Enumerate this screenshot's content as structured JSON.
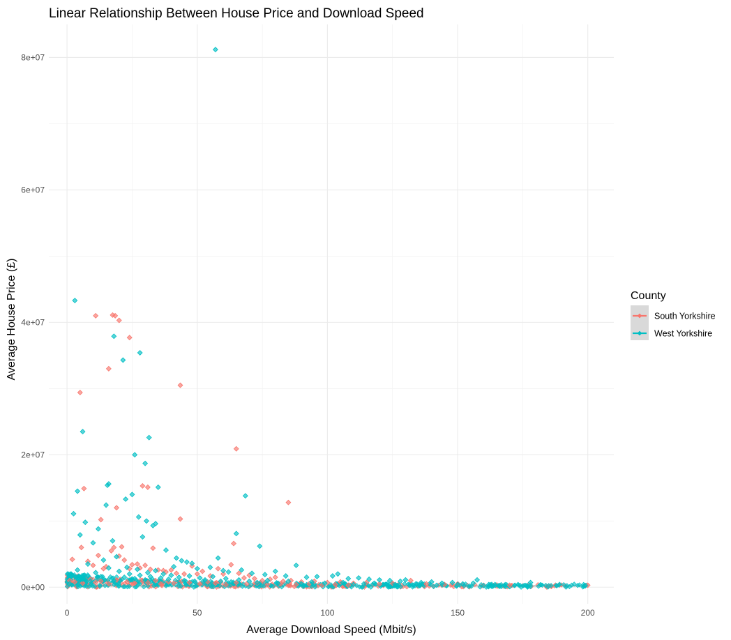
{
  "chart_data": {
    "type": "scatter",
    "title": "Linear Relationship Between House Price and Download Speed",
    "xlabel": "Average Download Speed (Mbit/s)",
    "ylabel": "Average House Price (£)",
    "xlim": [
      -7,
      210
    ],
    "ylim": [
      -2500000,
      85000000
    ],
    "x_ticks": [
      0,
      50,
      100,
      150,
      200
    ],
    "x_tick_labels": [
      "0",
      "50",
      "100",
      "150",
      "200"
    ],
    "y_ticks": [
      0,
      20000000,
      40000000,
      60000000,
      80000000
    ],
    "y_tick_labels": [
      "0e+00",
      "2e+07",
      "4e+07",
      "6e+07",
      "8e+07"
    ],
    "grid": true,
    "legend": {
      "title": "County",
      "position": "right"
    },
    "series": [
      {
        "name": "South Yorkshire",
        "color": "#F8766D",
        "points": [
          [
            11,
            41000000
          ],
          [
            17.5,
            41100000
          ],
          [
            18.5,
            41000000
          ],
          [
            20,
            40300000
          ],
          [
            24,
            37700000
          ],
          [
            5,
            29400000
          ],
          [
            16,
            33000000
          ],
          [
            43.5,
            30500000
          ],
          [
            65,
            20900000
          ],
          [
            85,
            12800000
          ],
          [
            6.5,
            14900000
          ],
          [
            19,
            12000000
          ],
          [
            29,
            15300000
          ],
          [
            31,
            15100000
          ],
          [
            43.5,
            10300000
          ],
          [
            13,
            10200000
          ],
          [
            2,
            4200000
          ],
          [
            5.5,
            6000000
          ],
          [
            8,
            3900000
          ],
          [
            10,
            3300000
          ],
          [
            12,
            4800000
          ],
          [
            14,
            2800000
          ],
          [
            15,
            3100000
          ],
          [
            17,
            5500000
          ],
          [
            18,
            6000000
          ],
          [
            20,
            4700000
          ],
          [
            21,
            6100000
          ],
          [
            22,
            4100000
          ],
          [
            24,
            2800000
          ],
          [
            25,
            3400000
          ],
          [
            27,
            3500000
          ],
          [
            28,
            2900000
          ],
          [
            30,
            3300000
          ],
          [
            32,
            2700000
          ],
          [
            33,
            5900000
          ],
          [
            35,
            2600000
          ],
          [
            37,
            2500000
          ],
          [
            38,
            2300000
          ],
          [
            40,
            2600000
          ],
          [
            42,
            2100000
          ],
          [
            45,
            2000000
          ],
          [
            48,
            3200000
          ],
          [
            50,
            2000000
          ],
          [
            52,
            2400000
          ],
          [
            55,
            1700000
          ],
          [
            58,
            2800000
          ],
          [
            60,
            2000000
          ],
          [
            63,
            3400000
          ],
          [
            64,
            6600000
          ],
          [
            66,
            2100000
          ],
          [
            68,
            1400000
          ],
          [
            70,
            1800000
          ],
          [
            72,
            1300000
          ],
          [
            75,
            1000000
          ],
          [
            78,
            1200000
          ],
          [
            80,
            1500000
          ],
          [
            83,
            900000
          ],
          [
            86,
            1000000
          ],
          [
            90,
            800000
          ],
          [
            95,
            900000
          ],
          [
            100,
            700000
          ],
          [
            105,
            800000
          ],
          [
            110,
            600000
          ],
          [
            115,
            700000
          ],
          [
            120,
            500000
          ],
          [
            125,
            600000
          ],
          [
            132,
            1000000
          ],
          [
            138,
            500000
          ],
          [
            145,
            400000
          ],
          [
            150,
            500000
          ],
          [
            160,
            300000
          ],
          [
            170,
            300000
          ],
          [
            185,
            200000
          ],
          [
            200,
            300000
          ],
          [
            1,
            1000000
          ],
          [
            3,
            800000
          ],
          [
            6,
            600000
          ],
          [
            9,
            1200000
          ],
          [
            11,
            700000
          ],
          [
            13,
            900000
          ],
          [
            16,
            500000
          ],
          [
            19,
            1100000
          ],
          [
            23,
            800000
          ],
          [
            26,
            600000
          ],
          [
            29,
            900000
          ],
          [
            31,
            700000
          ],
          [
            34,
            1000000
          ],
          [
            36,
            500000
          ],
          [
            39,
            800000
          ],
          [
            41,
            600000
          ],
          [
            44,
            900000
          ],
          [
            47,
            700000
          ],
          [
            51,
            500000
          ],
          [
            54,
            800000
          ],
          [
            57,
            600000
          ],
          [
            61,
            400000
          ],
          [
            65,
            700000
          ],
          [
            69,
            500000
          ],
          [
            73,
            600000
          ],
          [
            77,
            400000
          ],
          [
            82,
            500000
          ],
          [
            88,
            400000
          ],
          [
            93,
            500000
          ],
          [
            98,
            300000
          ],
          [
            103,
            400000
          ],
          [
            108,
            300000
          ]
        ]
      },
      {
        "name": "West Yorkshire",
        "color": "#00BFC4",
        "points": [
          [
            57,
            81200000
          ],
          [
            3,
            43300000
          ],
          [
            18,
            37900000
          ],
          [
            28,
            35400000
          ],
          [
            21.5,
            34300000
          ],
          [
            6,
            23500000
          ],
          [
            31.5,
            22600000
          ],
          [
            26,
            20000000
          ],
          [
            30,
            18700000
          ],
          [
            15.5,
            15400000
          ],
          [
            16,
            15600000
          ],
          [
            4,
            14500000
          ],
          [
            35,
            15100000
          ],
          [
            25,
            14000000
          ],
          [
            22.5,
            13300000
          ],
          [
            68.5,
            13800000
          ],
          [
            15,
            12400000
          ],
          [
            2.5,
            11100000
          ],
          [
            27.5,
            10600000
          ],
          [
            30.5,
            10000000
          ],
          [
            7,
            9800000
          ],
          [
            33,
            9300000
          ],
          [
            34,
            9600000
          ],
          [
            12,
            8800000
          ],
          [
            65,
            8100000
          ],
          [
            17.5,
            7000000
          ],
          [
            29,
            7600000
          ],
          [
            10,
            6700000
          ],
          [
            5,
            7900000
          ],
          [
            74,
            6200000
          ],
          [
            38,
            5600000
          ],
          [
            42,
            4400000
          ],
          [
            44,
            4000000
          ],
          [
            46,
            3800000
          ],
          [
            58,
            4400000
          ],
          [
            48,
            3600000
          ],
          [
            50,
            2800000
          ],
          [
            55,
            3000000
          ],
          [
            60,
            2500000
          ],
          [
            62,
            2300000
          ],
          [
            67,
            2600000
          ],
          [
            71,
            2100000
          ],
          [
            76,
            1900000
          ],
          [
            80,
            2400000
          ],
          [
            84,
            1700000
          ],
          [
            88,
            3300000
          ],
          [
            92,
            1500000
          ],
          [
            96,
            1600000
          ],
          [
            102,
            1700000
          ],
          [
            104,
            2000000
          ],
          [
            108,
            1300000
          ],
          [
            112,
            1400000
          ],
          [
            116,
            1200000
          ],
          [
            120,
            1100000
          ],
          [
            124,
            1000000
          ],
          [
            128,
            900000
          ],
          [
            130,
            1100000
          ],
          [
            136,
            700000
          ],
          [
            140,
            800000
          ],
          [
            144,
            600000
          ],
          [
            148,
            700000
          ],
          [
            152,
            500000
          ],
          [
            156,
            600000
          ],
          [
            157.5,
            1100000
          ],
          [
            162,
            400000
          ],
          [
            168,
            300000
          ],
          [
            172,
            300000
          ],
          [
            178,
            700000
          ],
          [
            185,
            200000
          ],
          [
            192,
            200000
          ],
          [
            199,
            200000
          ],
          [
            1,
            500000
          ],
          [
            2,
            1800000
          ],
          [
            4,
            2600000
          ],
          [
            6,
            1200000
          ],
          [
            8,
            3500000
          ],
          [
            9,
            900000
          ],
          [
            11,
            2200000
          ],
          [
            13,
            1600000
          ],
          [
            14,
            4100000
          ],
          [
            16,
            2900000
          ],
          [
            18,
            1000000
          ],
          [
            19,
            4600000
          ],
          [
            20,
            2400000
          ],
          [
            22,
            1500000
          ],
          [
            23,
            3000000
          ],
          [
            24,
            2000000
          ],
          [
            26,
            1300000
          ],
          [
            27,
            2700000
          ],
          [
            28,
            1800000
          ],
          [
            30,
            1100000
          ],
          [
            31,
            2200000
          ],
          [
            32,
            1600000
          ],
          [
            34,
            2500000
          ],
          [
            36,
            1400000
          ],
          [
            37,
            2000000
          ],
          [
            39,
            1200000
          ],
          [
            40,
            1800000
          ],
          [
            41,
            3100000
          ],
          [
            43,
            1500000
          ],
          [
            45,
            1000000
          ],
          [
            47,
            1700000
          ],
          [
            49,
            900000
          ],
          [
            51,
            1400000
          ],
          [
            53,
            1100000
          ],
          [
            56,
            1600000
          ],
          [
            59,
            900000
          ],
          [
            61,
            1300000
          ],
          [
            63,
            800000
          ],
          [
            66,
            1100000
          ],
          [
            70,
            900000
          ],
          [
            73,
            700000
          ],
          [
            77,
            1000000
          ],
          [
            81,
            600000
          ],
          [
            85,
            900000
          ],
          [
            90,
            500000
          ],
          [
            94,
            800000
          ],
          [
            99,
            600000
          ],
          [
            106,
            700000
          ],
          [
            110,
            400000
          ],
          [
            114,
            500000
          ],
          [
            118,
            600000
          ],
          [
            126,
            400000
          ],
          [
            134,
            500000
          ],
          [
            142,
            300000
          ],
          [
            150,
            400000
          ],
          [
            160,
            250000
          ]
        ]
      }
    ]
  }
}
